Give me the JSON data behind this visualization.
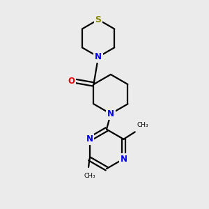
{
  "bg_color": "#ebebeb",
  "bond_color": "#000000",
  "N_color": "#0000ee",
  "O_color": "#ee0000",
  "S_color": "#888800",
  "line_width": 1.6,
  "figsize": [
    3.0,
    3.0
  ],
  "dpi": 100,
  "xlim": [
    0,
    10
  ],
  "ylim": [
    0,
    10
  ]
}
